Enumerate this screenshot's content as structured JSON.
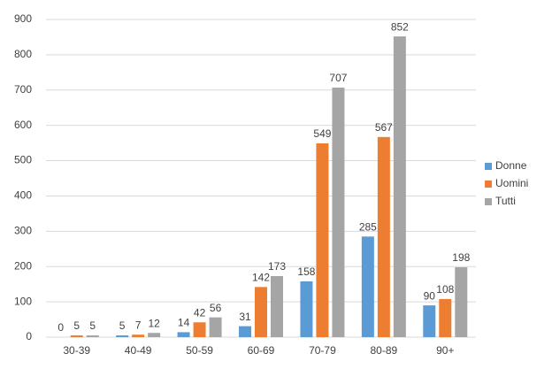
{
  "chart_data": {
    "type": "bar",
    "categories": [
      "30-39",
      "40-49",
      "50-59",
      "60-69",
      "70-79",
      "80-89",
      "90+"
    ],
    "series": [
      {
        "name": "Donne",
        "color": "#5b9bd5",
        "values": [
          0,
          5,
          14,
          31,
          158,
          285,
          90
        ]
      },
      {
        "name": "Uomini",
        "color": "#ed7d31",
        "values": [
          5,
          7,
          42,
          142,
          549,
          567,
          108
        ]
      },
      {
        "name": "Tutti",
        "color": "#a5a5a5",
        "values": [
          5,
          12,
          56,
          173,
          707,
          852,
          198
        ]
      }
    ],
    "ylim": [
      0,
      900
    ],
    "yticks": [
      0,
      100,
      200,
      300,
      400,
      500,
      600,
      700,
      800,
      900
    ],
    "grid": true,
    "legend": "right"
  }
}
